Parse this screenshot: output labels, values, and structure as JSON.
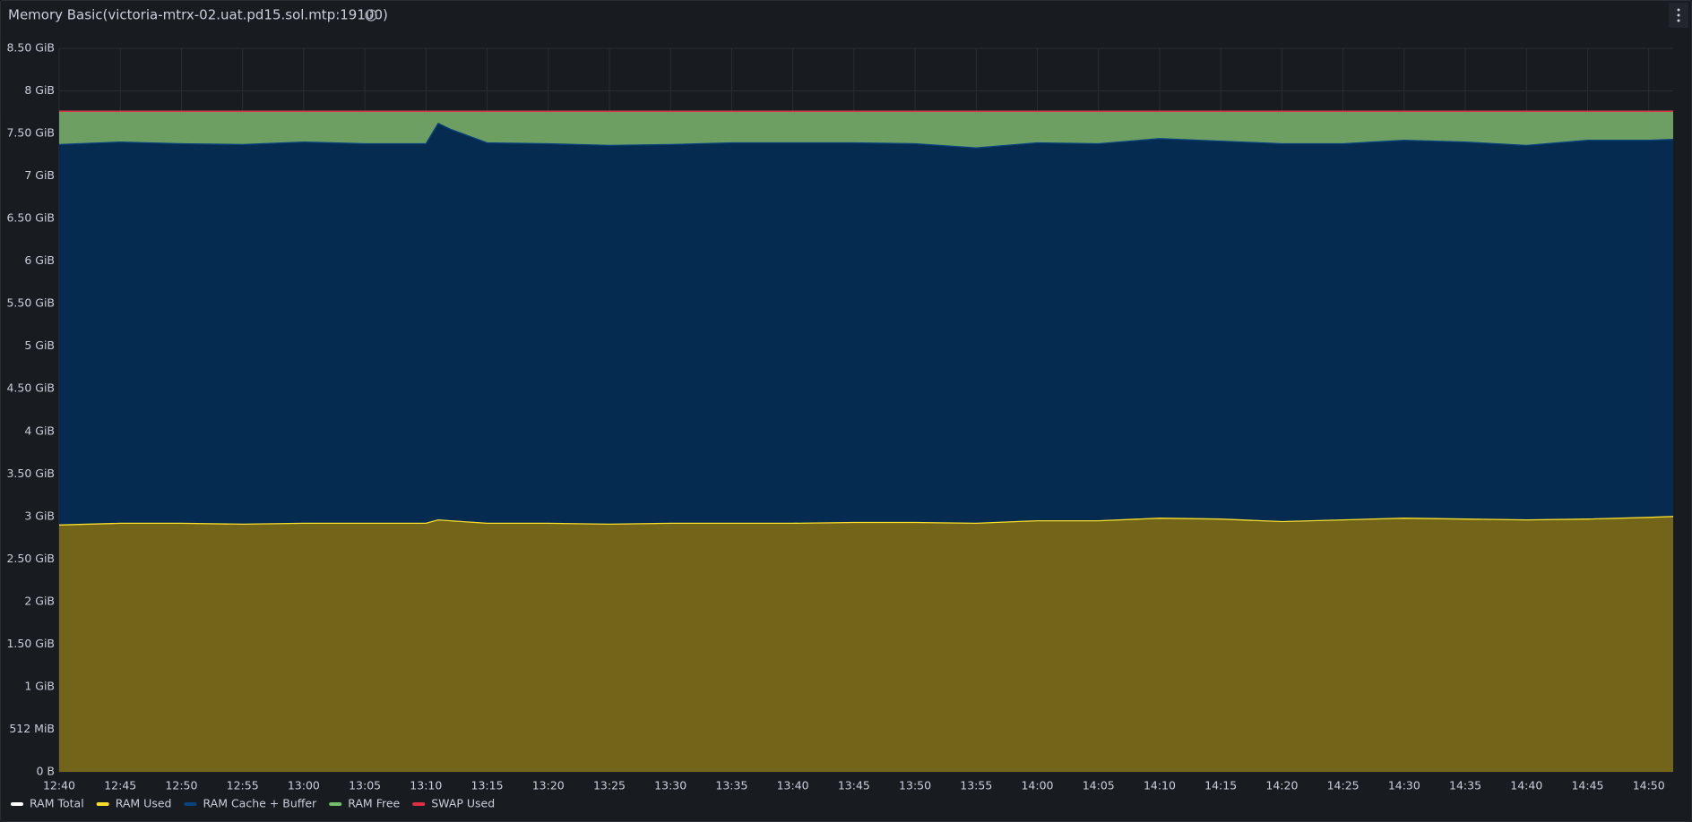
{
  "panel": {
    "title": "Memory Basic(victoria-mtrx-02.uat.pd15.sol.mtp:19100)"
  },
  "chart_data": {
    "type": "area",
    "x": [
      "12:40",
      "12:45",
      "12:50",
      "12:55",
      "13:00",
      "13:05",
      "13:10",
      "13:11",
      "13:12",
      "13:15",
      "13:20",
      "13:25",
      "13:30",
      "13:35",
      "13:40",
      "13:45",
      "13:50",
      "13:55",
      "14:00",
      "14:05",
      "14:10",
      "14:15",
      "14:20",
      "14:25",
      "14:30",
      "14:35",
      "14:40",
      "14:45",
      "14:50",
      "14:52"
    ],
    "xlim": [
      "12:40",
      "14:52"
    ],
    "xticks": [
      "12:40",
      "12:45",
      "12:50",
      "12:55",
      "13:00",
      "13:05",
      "13:10",
      "13:15",
      "13:20",
      "13:25",
      "13:30",
      "13:35",
      "13:40",
      "13:45",
      "13:50",
      "13:55",
      "14:00",
      "14:05",
      "14:10",
      "14:15",
      "14:20",
      "14:25",
      "14:30",
      "14:35",
      "14:40",
      "14:45",
      "14:50"
    ],
    "ylim": [
      0,
      8.5
    ],
    "yticks": [
      {
        "value": 0,
        "label": "0 B"
      },
      {
        "value": 0.5,
        "label": "512 MiB"
      },
      {
        "value": 1,
        "label": "1 GiB"
      },
      {
        "value": 1.5,
        "label": "1.50 GiB"
      },
      {
        "value": 2,
        "label": "2 GiB"
      },
      {
        "value": 2.5,
        "label": "2.50 GiB"
      },
      {
        "value": 3,
        "label": "3 GiB"
      },
      {
        "value": 3.5,
        "label": "3.50 GiB"
      },
      {
        "value": 4,
        "label": "4 GiB"
      },
      {
        "value": 4.5,
        "label": "4.50 GiB"
      },
      {
        "value": 5,
        "label": "5 GiB"
      },
      {
        "value": 5.5,
        "label": "5.50 GiB"
      },
      {
        "value": 6,
        "label": "6 GiB"
      },
      {
        "value": 6.5,
        "label": "6.50 GiB"
      },
      {
        "value": 7,
        "label": "7 GiB"
      },
      {
        "value": 7.5,
        "label": "7.50 GiB"
      },
      {
        "value": 8,
        "label": "8 GiB"
      },
      {
        "value": 8.5,
        "label": "8.50 GiB"
      }
    ],
    "grid": true,
    "legend": "bottom",
    "series": [
      {
        "name": "RAM Total",
        "color": "#ffffff",
        "stack": false,
        "values": [
          7.76,
          7.76,
          7.76,
          7.76,
          7.76,
          7.76,
          7.76,
          7.76,
          7.76,
          7.76,
          7.76,
          7.76,
          7.76,
          7.76,
          7.76,
          7.76,
          7.76,
          7.76,
          7.76,
          7.76,
          7.76,
          7.76,
          7.76,
          7.76,
          7.76,
          7.76,
          7.76,
          7.76,
          7.76,
          7.76
        ]
      },
      {
        "name": "RAM Used",
        "color": "#fade2a",
        "fill": "#726419",
        "stack": true,
        "values": [
          2.9,
          2.92,
          2.92,
          2.91,
          2.92,
          2.92,
          2.92,
          2.96,
          2.95,
          2.92,
          2.92,
          2.91,
          2.92,
          2.92,
          2.92,
          2.93,
          2.93,
          2.92,
          2.95,
          2.95,
          2.98,
          2.97,
          2.94,
          2.96,
          2.98,
          2.97,
          2.96,
          2.97,
          2.99,
          3.0
        ]
      },
      {
        "name": "RAM Cache + Buffer",
        "color": "#0a437c",
        "fill": "#052b51",
        "stack": true,
        "values": [
          4.47,
          4.48,
          4.46,
          4.46,
          4.48,
          4.46,
          4.46,
          4.66,
          4.6,
          4.47,
          4.46,
          4.45,
          4.45,
          4.47,
          4.47,
          4.46,
          4.45,
          4.41,
          4.44,
          4.43,
          4.46,
          4.44,
          4.44,
          4.42,
          4.44,
          4.43,
          4.4,
          4.45,
          4.43,
          4.43
        ]
      },
      {
        "name": "RAM Free",
        "color": "#73bf69",
        "fill": "#6e9f62",
        "stack": true,
        "values": [
          0.39,
          0.36,
          0.38,
          0.39,
          0.36,
          0.38,
          0.38,
          0.14,
          0.21,
          0.37,
          0.38,
          0.4,
          0.39,
          0.37,
          0.37,
          0.37,
          0.38,
          0.43,
          0.37,
          0.38,
          0.32,
          0.35,
          0.38,
          0.38,
          0.34,
          0.36,
          0.4,
          0.34,
          0.34,
          0.33
        ]
      },
      {
        "name": "SWAP Used",
        "color": "#e02f44",
        "fill": "#e02f44",
        "stack": true,
        "values": [
          0,
          0,
          0,
          0,
          0,
          0,
          0,
          0,
          0,
          0,
          0,
          0,
          0,
          0,
          0,
          0,
          0,
          0,
          0,
          0,
          0,
          0,
          0,
          0,
          0,
          0,
          0,
          0,
          0,
          0
        ]
      }
    ]
  }
}
